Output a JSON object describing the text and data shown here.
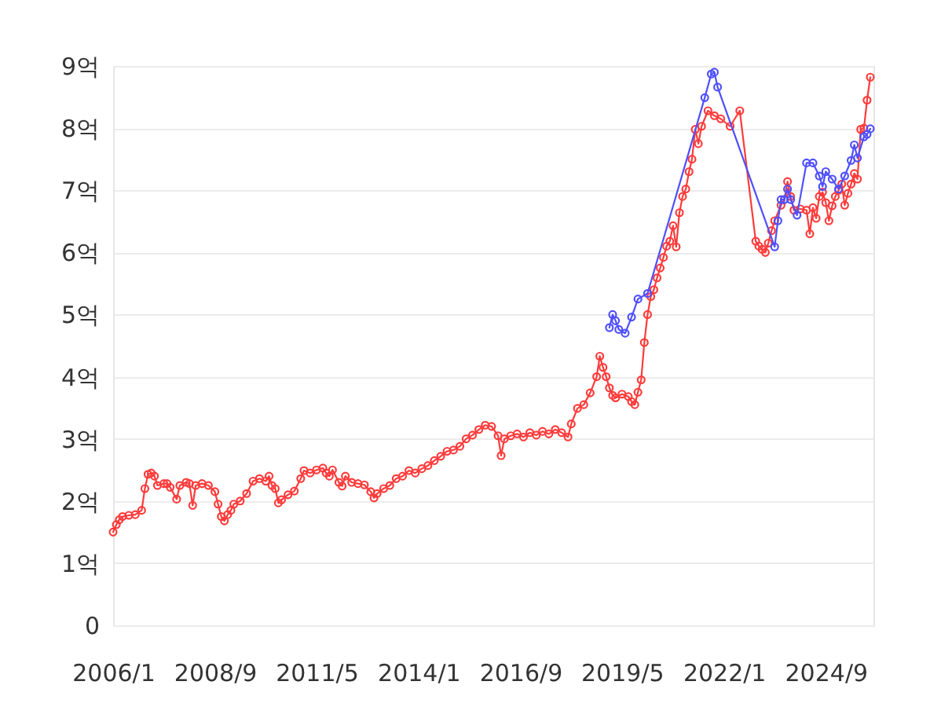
{
  "chart_data": {
    "type": "line",
    "xlim": [
      "2006-01",
      "2025-12"
    ],
    "xticks": [
      {
        "value": "2006-01",
        "label": "2006/1"
      },
      {
        "value": "2008-09",
        "label": "2008/9"
      },
      {
        "value": "2011-05",
        "label": "2011/5"
      },
      {
        "value": "2014-01",
        "label": "2014/1"
      },
      {
        "value": "2016-09",
        "label": "2016/9"
      },
      {
        "value": "2019-05",
        "label": "2019/5"
      },
      {
        "value": "2022-01",
        "label": "2022/1"
      },
      {
        "value": "2024-09",
        "label": "2024/9"
      }
    ],
    "ylim": [
      0,
      9
    ],
    "yticks": [
      0,
      {
        "value": 1,
        "label": "1억"
      },
      {
        "value": 2,
        "label": "2억"
      },
      {
        "value": 3,
        "label": "3억"
      },
      {
        "value": 4,
        "label": "4억"
      },
      {
        "value": 5,
        "label": "5억"
      },
      {
        "value": 6,
        "label": "6억"
      },
      {
        "value": 7,
        "label": "7억"
      },
      {
        "value": 8,
        "label": "8억"
      },
      {
        "value": 9,
        "label": "9억"
      }
    ],
    "grid": "y",
    "marker": "circle",
    "line_style": "solid",
    "series": [
      {
        "color": "#ff3b3b",
        "x": [
          "2006-01",
          "2006-02",
          "2006-03",
          "2006-04",
          "2006-06",
          "2006-08",
          "2006-10",
          "2006-11",
          "2006-12",
          "2007-01",
          "2007-02",
          "2007-03",
          "2007-05",
          "2007-06",
          "2007-07",
          "2007-09",
          "2007-10",
          "2007-12",
          "2008-01",
          "2008-02",
          "2008-03",
          "2008-05",
          "2008-07",
          "2008-09",
          "2008-10",
          "2008-11",
          "2008-12",
          "2009-01",
          "2009-02",
          "2009-03",
          "2009-05",
          "2009-07",
          "2009-09",
          "2009-11",
          "2010-01",
          "2010-02",
          "2010-03",
          "2010-04",
          "2010-05",
          "2010-06",
          "2010-08",
          "2010-10",
          "2010-12",
          "2011-01",
          "2011-03",
          "2011-05",
          "2011-07",
          "2011-08",
          "2011-09",
          "2011-10",
          "2011-12",
          "2012-01",
          "2012-02",
          "2012-04",
          "2012-06",
          "2012-08",
          "2012-10",
          "2012-11",
          "2012-12",
          "2013-02",
          "2013-04",
          "2013-06",
          "2013-08",
          "2013-10",
          "2013-12",
          "2014-02",
          "2014-04",
          "2014-06",
          "2014-08",
          "2014-10",
          "2014-12",
          "2015-02",
          "2015-04",
          "2015-06",
          "2015-08",
          "2015-10",
          "2015-12",
          "2016-02",
          "2016-03",
          "2016-04",
          "2016-06",
          "2016-08",
          "2016-10",
          "2016-12",
          "2017-02",
          "2017-04",
          "2017-06",
          "2017-08",
          "2017-10",
          "2017-12",
          "2018-01",
          "2018-03",
          "2018-05",
          "2018-07",
          "2018-09",
          "2018-10",
          "2018-11",
          "2018-12",
          "2019-01",
          "2019-02",
          "2019-03",
          "2019-05",
          "2019-07",
          "2019-08",
          "2019-09",
          "2019-10",
          "2019-11",
          "2019-12",
          "2020-01",
          "2020-02",
          "2020-03",
          "2020-04",
          "2020-05",
          "2020-06",
          "2020-07",
          "2020-08",
          "2020-09",
          "2020-10",
          "2020-11",
          "2020-12",
          "2021-01",
          "2021-02",
          "2021-03",
          "2021-04",
          "2021-05",
          "2021-06",
          "2021-08",
          "2021-10",
          "2021-12",
          "2022-03",
          "2022-06",
          "2022-11",
          "2022-12",
          "2023-01",
          "2023-02",
          "2023-03",
          "2023-04",
          "2023-05",
          "2023-07",
          "2023-08",
          "2023-09",
          "2023-10",
          "2023-11",
          "2024-01",
          "2024-03",
          "2024-04",
          "2024-05",
          "2024-06",
          "2024-07",
          "2024-08",
          "2024-09",
          "2024-10",
          "2024-11",
          "2024-12",
          "2025-01",
          "2025-02",
          "2025-03",
          "2025-04",
          "2025-05",
          "2025-06",
          "2025-07",
          "2025-08",
          "2025-09",
          "2025-10",
          "2025-11"
        ],
        "values": [
          1.5,
          1.62,
          1.7,
          1.75,
          1.77,
          1.78,
          1.85,
          2.2,
          2.43,
          2.45,
          2.4,
          2.25,
          2.28,
          2.28,
          2.22,
          2.03,
          2.25,
          2.3,
          2.28,
          1.93,
          2.25,
          2.28,
          2.25,
          2.15,
          1.95,
          1.75,
          1.68,
          1.78,
          1.85,
          1.95,
          2.0,
          2.12,
          2.32,
          2.36,
          2.32,
          2.4,
          2.25,
          2.2,
          1.97,
          2.02,
          2.1,
          2.16,
          2.36,
          2.49,
          2.45,
          2.5,
          2.53,
          2.45,
          2.4,
          2.5,
          2.3,
          2.24,
          2.4,
          2.3,
          2.28,
          2.26,
          2.15,
          2.05,
          2.12,
          2.2,
          2.25,
          2.36,
          2.4,
          2.49,
          2.45,
          2.52,
          2.57,
          2.65,
          2.72,
          2.8,
          2.82,
          2.88,
          3.0,
          3.06,
          3.15,
          3.22,
          3.2,
          3.05,
          2.73,
          3.0,
          3.05,
          3.08,
          3.03,
          3.1,
          3.06,
          3.12,
          3.08,
          3.15,
          3.1,
          3.03,
          3.24,
          3.49,
          3.55,
          3.74,
          4.0,
          4.33,
          4.15,
          4.0,
          3.82,
          3.7,
          3.66,
          3.72,
          3.68,
          3.6,
          3.55,
          3.75,
          3.95,
          4.55,
          5.0,
          5.29,
          5.4,
          5.59,
          5.75,
          5.92,
          6.1,
          6.18,
          6.43,
          6.09,
          6.64,
          6.9,
          7.02,
          7.3,
          7.5,
          7.98,
          7.75,
          8.03,
          8.28,
          8.2,
          8.15,
          8.03,
          8.28,
          6.18,
          6.1,
          6.05,
          6.0,
          6.15,
          6.35,
          6.51,
          6.76,
          6.85,
          7.14,
          6.9,
          6.68,
          6.7,
          6.68,
          6.3,
          6.72,
          6.55,
          6.9,
          6.97,
          6.8,
          6.51,
          6.75,
          6.9,
          7.0,
          7.1,
          6.76,
          6.95,
          7.1,
          7.27,
          7.18,
          7.98,
          8.0,
          8.45,
          8.82
        ]
      },
      {
        "color": "#4f4fff",
        "x": [
          "2019-01",
          "2019-02",
          "2019-03",
          "2019-04",
          "2019-06",
          "2019-08",
          "2019-10",
          "2020-01",
          "2021-07",
          "2021-09",
          "2021-10",
          "2021-11",
          "2023-05",
          "2023-06",
          "2023-07",
          "2023-08",
          "2023-09",
          "2023-10",
          "2023-12",
          "2024-03",
          "2024-05",
          "2024-07",
          "2024-08",
          "2024-09",
          "2024-11",
          "2025-01",
          "2025-03",
          "2025-05",
          "2025-06",
          "2025-07",
          "2025-09",
          "2025-10",
          "2025-11"
        ],
        "values": [
          4.79,
          5.0,
          4.9,
          4.76,
          4.7,
          4.96,
          5.25,
          5.34,
          8.49,
          8.87,
          8.9,
          8.66,
          6.09,
          6.51,
          6.85,
          6.85,
          7.02,
          6.85,
          6.6,
          7.44,
          7.44,
          7.23,
          7.06,
          7.3,
          7.18,
          7.02,
          7.23,
          7.48,
          7.73,
          7.52,
          7.86,
          7.9,
          7.99
        ]
      }
    ]
  }
}
